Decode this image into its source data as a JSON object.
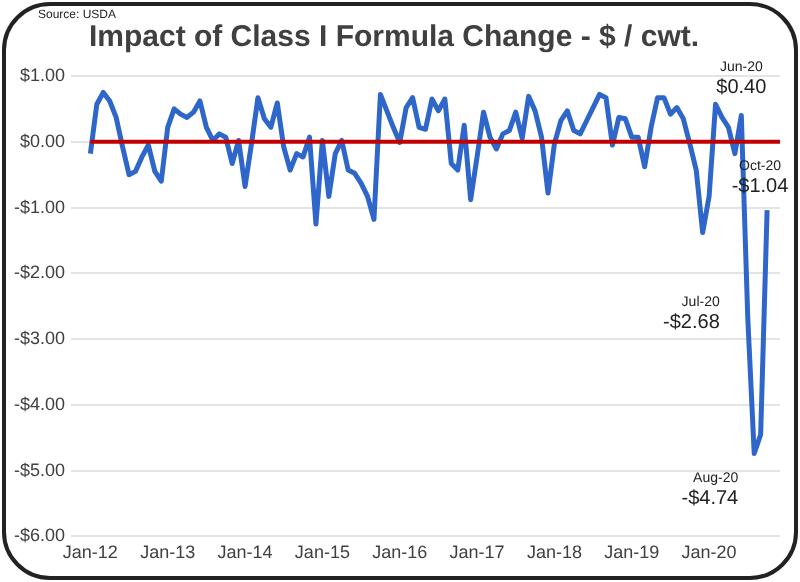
{
  "chart_data": {
    "type": "line",
    "title": "Impact of Class I Formula Change - $ / cwt.",
    "x": [
      "2012-01",
      "2012-02",
      "2012-03",
      "2012-04",
      "2012-05",
      "2012-06",
      "2012-07",
      "2012-08",
      "2012-09",
      "2012-10",
      "2012-11",
      "2012-12",
      "2013-01",
      "2013-02",
      "2013-03",
      "2013-04",
      "2013-05",
      "2013-06",
      "2013-07",
      "2013-08",
      "2013-09",
      "2013-10",
      "2013-11",
      "2013-12",
      "2014-01",
      "2014-02",
      "2014-03",
      "2014-04",
      "2014-05",
      "2014-06",
      "2014-07",
      "2014-08",
      "2014-09",
      "2014-10",
      "2014-11",
      "2014-12",
      "2015-01",
      "2015-02",
      "2015-03",
      "2015-04",
      "2015-05",
      "2015-06",
      "2015-07",
      "2015-08",
      "2015-09",
      "2015-10",
      "2015-11",
      "2015-12",
      "2016-01",
      "2016-02",
      "2016-03",
      "2016-04",
      "2016-05",
      "2016-06",
      "2016-07",
      "2016-08",
      "2016-09",
      "2016-10",
      "2016-11",
      "2016-12",
      "2017-01",
      "2017-02",
      "2017-03",
      "2017-04",
      "2017-05",
      "2017-06",
      "2017-07",
      "2017-08",
      "2017-09",
      "2017-10",
      "2017-11",
      "2017-12",
      "2018-01",
      "2018-02",
      "2018-03",
      "2018-04",
      "2018-05",
      "2018-06",
      "2018-07",
      "2018-08",
      "2018-09",
      "2018-10",
      "2018-11",
      "2018-12",
      "2019-01",
      "2019-02",
      "2019-03",
      "2019-04",
      "2019-05",
      "2019-06",
      "2019-07",
      "2019-08",
      "2019-09",
      "2019-10",
      "2019-11",
      "2019-12",
      "2020-01",
      "2020-02",
      "2020-03",
      "2020-04",
      "2020-05",
      "2020-06",
      "2020-07",
      "2020-08",
      "2020-09",
      "2020-10"
    ],
    "series": [
      {
        "color": "#2e67c9",
        "values": [
          -0.18,
          0.57,
          0.75,
          0.62,
          0.37,
          -0.08,
          -0.5,
          -0.45,
          -0.23,
          -0.05,
          -0.45,
          -0.6,
          0.22,
          0.5,
          0.42,
          0.37,
          0.45,
          0.62,
          0.22,
          0.02,
          0.12,
          0.07,
          -0.33,
          0.02,
          -0.68,
          -0.03,
          0.67,
          0.35,
          0.22,
          0.59,
          -0.08,
          -0.43,
          -0.18,
          -0.23,
          0.07,
          -1.25,
          0.02,
          -0.83,
          -0.18,
          0.02,
          -0.43,
          -0.48,
          -0.63,
          -0.83,
          -1.18,
          0.72,
          0.47,
          0.22,
          -0.01,
          0.52,
          0.67,
          0.22,
          0.19,
          0.65,
          0.47,
          0.65,
          -0.33,
          -0.43,
          0.25,
          -0.88,
          -0.23,
          0.45,
          0.07,
          -0.11,
          0.12,
          0.17,
          0.45,
          0.05,
          0.69,
          0.47,
          0.07,
          -0.78,
          -0.03,
          0.32,
          0.47,
          0.17,
          0.12,
          0.32,
          0.52,
          0.72,
          0.67,
          -0.05,
          0.37,
          0.35,
          0.07,
          0.07,
          -0.38,
          0.22,
          0.67,
          0.67,
          0.42,
          0.52,
          0.35,
          -0.03,
          -0.43,
          -1.38,
          -0.83,
          0.57,
          0.37,
          0.22,
          -0.18,
          0.4,
          -2.68,
          -4.74,
          -4.45,
          -1.04
        ]
      }
    ],
    "xlim": [
      "2011-10",
      "2020-12"
    ],
    "xticks": [
      {
        "value": "2012-01",
        "label": "Jan-12"
      },
      {
        "value": "2013-01",
        "label": "Jan-13"
      },
      {
        "value": "2014-01",
        "label": "Jan-14"
      },
      {
        "value": "2015-01",
        "label": "Jan-15"
      },
      {
        "value": "2016-01",
        "label": "Jan-16"
      },
      {
        "value": "2017-01",
        "label": "Jan-17"
      },
      {
        "value": "2018-01",
        "label": "Jan-18"
      },
      {
        "value": "2019-01",
        "label": "Jan-19"
      },
      {
        "value": "2020-01",
        "label": "Jan-20"
      }
    ],
    "ylim": [
      -6,
      1
    ],
    "yticks": [
      {
        "value": 1,
        "label": "$1.00"
      },
      {
        "value": 0,
        "label": "$0.00"
      },
      {
        "value": -1,
        "label": "-$1.00"
      },
      {
        "value": -2,
        "label": "-$2.00"
      },
      {
        "value": -3,
        "label": "-$3.00"
      },
      {
        "value": -4,
        "label": "-$4.00"
      },
      {
        "value": -5,
        "label": "-$5.00"
      },
      {
        "value": -6,
        "label": "-$6.00"
      }
    ],
    "grid": "y",
    "ref_lines": [
      {
        "axis": "y",
        "value": 0,
        "color": "#c00000"
      }
    ],
    "annotations": [
      "Source: USDA",
      {
        "text": "Jun-20 $0.40",
        "x": "2020-06",
        "y": 0.4
      },
      {
        "text": "Oct-20 -$1.04",
        "x": "2020-10",
        "y": -1.04
      },
      {
        "text": "Jul-20 -$2.68",
        "x": "2020-07",
        "y": -2.68
      },
      {
        "text": "Aug-20 -$4.74",
        "x": "2020-08",
        "y": -4.74
      }
    ]
  }
}
